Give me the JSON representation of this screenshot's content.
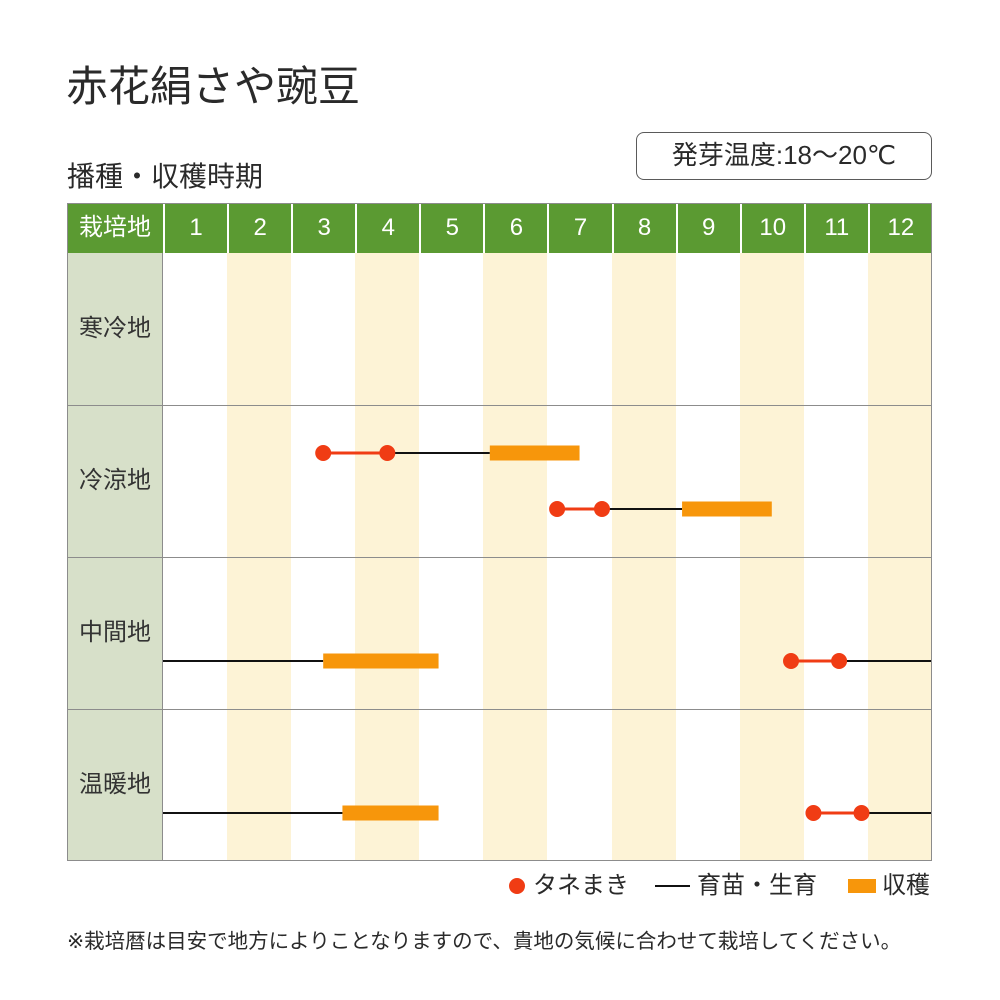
{
  "title": "赤花絹さや豌豆",
  "subtitle": "播種・収穫時期",
  "germination_temp": "発芽温度:18〜20℃",
  "note": "※栽培暦は目安で地方によりことなりますので、貴地の気候に合わせて栽培してください。",
  "colors": {
    "header": "#5b9a32",
    "region": "#d7e0c9",
    "stripe": "#fdf3d6",
    "grid": "#8c8c8c",
    "sowing": "#f03c14",
    "harvest": "#f7960b",
    "growing": "#111111"
  },
  "chart_data": {
    "type": "table",
    "row_header": "栽培地",
    "months": [
      "1",
      "2",
      "3",
      "4",
      "5",
      "6",
      "7",
      "8",
      "9",
      "10",
      "11",
      "12"
    ],
    "x_range": [
      1,
      13
    ],
    "legend": [
      "タネまき",
      "育苗・生育",
      "収穫"
    ],
    "rows": [
      {
        "region": "寒冷地",
        "schedules": []
      },
      {
        "region": "冷涼地",
        "schedules": [
          {
            "sowing": [
              3.5,
              4.5
            ],
            "growing": [
              [
                4.5,
                6.1
              ]
            ],
            "harvest": [
              6.1,
              7.5
            ]
          },
          {
            "sowing": [
              7.15,
              7.85
            ],
            "growing": [
              [
                7.85,
                9.1
              ]
            ],
            "harvest": [
              9.1,
              10.5
            ]
          }
        ]
      },
      {
        "region": "中間地",
        "schedules": [
          {
            "sowing": [
              10.8,
              11.55
            ],
            "growing": [
              [
                11.55,
                13
              ],
              [
                1,
                3.5
              ]
            ],
            "harvest": [
              3.5,
              5.3
            ]
          }
        ]
      },
      {
        "region": "温暖地",
        "schedules": [
          {
            "sowing": [
              11.15,
              11.9
            ],
            "growing": [
              [
                11.9,
                13
              ],
              [
                1,
                3.8
              ]
            ],
            "harvest": [
              3.8,
              5.3
            ]
          }
        ]
      }
    ]
  }
}
